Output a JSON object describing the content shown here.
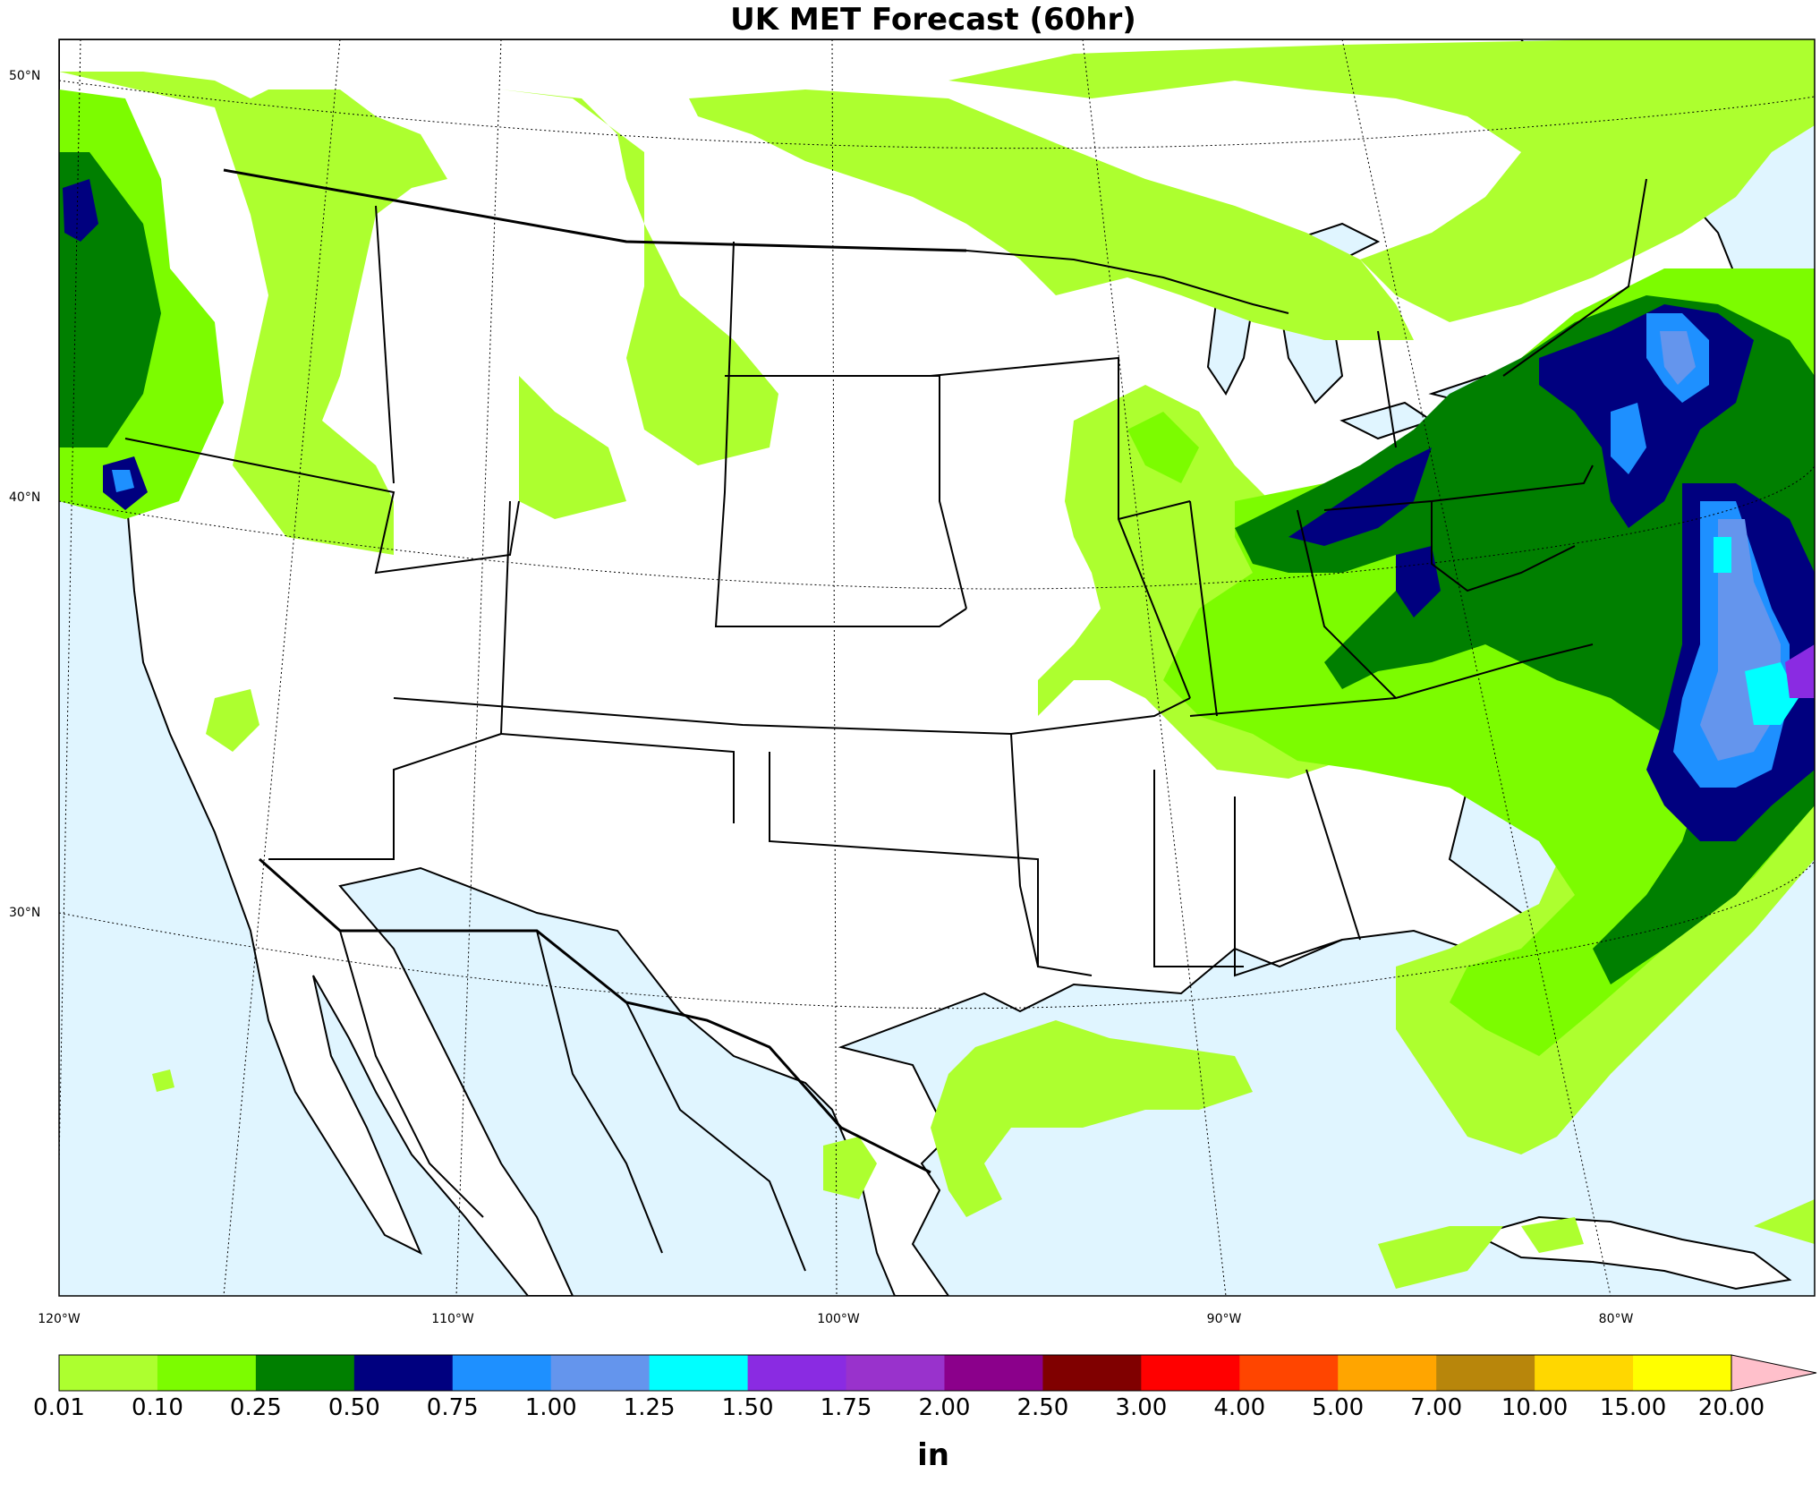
{
  "title": "UK MET Forecast (60hr)",
  "lat_labels": [
    "50°N",
    "40°N",
    "30°N"
  ],
  "lon_labels": [
    "120°W",
    "110°W",
    "100°W",
    "90°W",
    "80°W"
  ],
  "colorbar": {
    "units": "in",
    "ticks": [
      "0.01",
      "0.10",
      "0.25",
      "0.50",
      "0.75",
      "1.00",
      "1.25",
      "1.50",
      "1.75",
      "2.00",
      "2.50",
      "3.00",
      "4.00",
      "5.00",
      "7.00",
      "10.00",
      "15.00",
      "20.00"
    ],
    "colors": [
      "#adff2f",
      "#7cfc00",
      "#007f00",
      "#00007f",
      "#1e90ff",
      "#6495ed",
      "#00ffff",
      "#8a2be2",
      "#9932cc",
      "#8b008b",
      "#800000",
      "#ff0000",
      "#ff4500",
      "#ffa500",
      "#b8860b",
      "#ffd700",
      "#ffff00"
    ],
    "extend_color": "#ffc0cb"
  },
  "map": {
    "water_color": "#e0f5ff",
    "land_color": "#ffffff"
  }
}
